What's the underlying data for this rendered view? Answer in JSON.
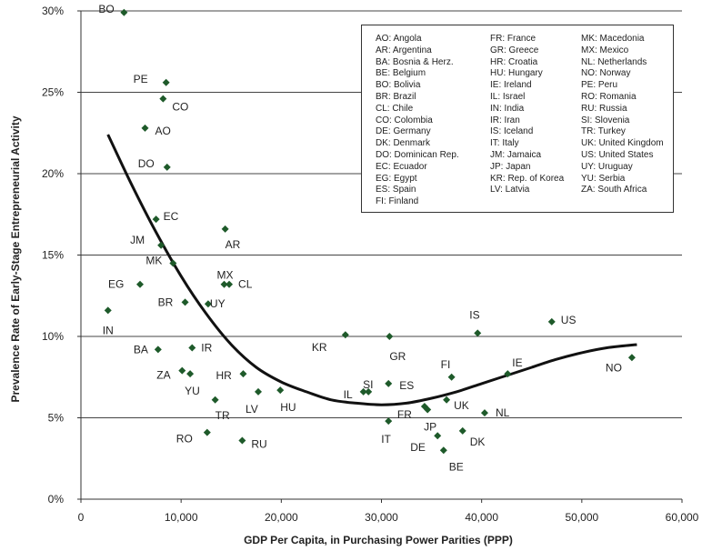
{
  "chart_data": {
    "type": "scatter",
    "title": "",
    "xlabel": "GDP Per Capita, in Purchasing Power Parities (PPP)",
    "ylabel": "Prevalence Rate of Early-Stage Entrepreneurial Activity",
    "xlim": [
      0,
      60000
    ],
    "ylim": [
      0,
      30
    ],
    "x_ticks": [
      "0",
      "10,000",
      "20,000",
      "30,000",
      "40,000",
      "50,000",
      "60,000"
    ],
    "y_ticks": [
      "0%",
      "5%",
      "10%",
      "15%",
      "20%",
      "25%",
      "30%"
    ],
    "grid": "horizontal",
    "marker_color": "#1e5a2a",
    "curve_color": "#111111",
    "points": [
      {
        "label": "BO",
        "x": 4300,
        "y": 29.9
      },
      {
        "label": "PE",
        "x": 8500,
        "y": 25.6
      },
      {
        "label": "CO",
        "x": 8200,
        "y": 24.6
      },
      {
        "label": "AO",
        "x": 6400,
        "y": 22.8
      },
      {
        "label": "DO",
        "x": 8600,
        "y": 20.4
      },
      {
        "label": "EC",
        "x": 7500,
        "y": 17.2
      },
      {
        "label": "AR",
        "x": 14400,
        "y": 16.6
      },
      {
        "label": "JM",
        "x": 8000,
        "y": 15.6
      },
      {
        "label": "MK",
        "x": 9200,
        "y": 14.5
      },
      {
        "label": "MX",
        "x": 14300,
        "y": 13.2
      },
      {
        "label": "CL",
        "x": 14800,
        "y": 13.2
      },
      {
        "label": "EG",
        "x": 5900,
        "y": 13.2
      },
      {
        "label": "BR",
        "x": 10400,
        "y": 12.1
      },
      {
        "label": "UY",
        "x": 12700,
        "y": 12.0
      },
      {
        "label": "IN",
        "x": 2700,
        "y": 11.6
      },
      {
        "label": "KR",
        "x": 26400,
        "y": 10.1
      },
      {
        "label": "GR",
        "x": 30800,
        "y": 10.0
      },
      {
        "label": "IS",
        "x": 39600,
        "y": 10.2
      },
      {
        "label": "US",
        "x": 47000,
        "y": 10.9
      },
      {
        "label": "BA",
        "x": 7700,
        "y": 9.2
      },
      {
        "label": "IR",
        "x": 11100,
        "y": 9.3
      },
      {
        "label": "ZA",
        "x": 10100,
        "y": 7.9
      },
      {
        "label": "YU",
        "x": 10900,
        "y": 7.7
      },
      {
        "label": "HR",
        "x": 16200,
        "y": 7.7
      },
      {
        "label": "FI",
        "x": 37000,
        "y": 7.5
      },
      {
        "label": "IE",
        "x": 42600,
        "y": 7.7
      },
      {
        "label": "NO",
        "x": 55000,
        "y": 8.7
      },
      {
        "label": "SI",
        "x": 28700,
        "y": 6.6
      },
      {
        "label": "IL",
        "x": 28200,
        "y": 6.6
      },
      {
        "label": "ES",
        "x": 30700,
        "y": 7.1
      },
      {
        "label": "LV",
        "x": 17700,
        "y": 6.6
      },
      {
        "label": "HU",
        "x": 19900,
        "y": 6.7
      },
      {
        "label": "TR",
        "x": 13400,
        "y": 6.1
      },
      {
        "label": "UK",
        "x": 36500,
        "y": 6.1
      },
      {
        "label": "FR",
        "x": 34300,
        "y": 5.7
      },
      {
        "label": "JP",
        "x": 34600,
        "y": 5.5
      },
      {
        "label": "NL",
        "x": 40300,
        "y": 5.3
      },
      {
        "label": "IT",
        "x": 30700,
        "y": 4.8
      },
      {
        "label": "RO",
        "x": 12600,
        "y": 4.1
      },
      {
        "label": "DK",
        "x": 38100,
        "y": 4.2
      },
      {
        "label": "DE",
        "x": 35600,
        "y": 3.9
      },
      {
        "label": "RU",
        "x": 16100,
        "y": 3.6
      },
      {
        "label": "BE",
        "x": 36200,
        "y": 3.0
      }
    ],
    "trend_curve": [
      [
        2700,
        22.4
      ],
      [
        5000,
        19.4
      ],
      [
        7500,
        16.4
      ],
      [
        10000,
        13.7
      ],
      [
        12500,
        11.4
      ],
      [
        15000,
        9.5
      ],
      [
        17500,
        8.1
      ],
      [
        20000,
        7.2
      ],
      [
        22500,
        6.6
      ],
      [
        25000,
        6.1
      ],
      [
        27500,
        5.9
      ],
      [
        30000,
        5.8
      ],
      [
        32500,
        5.9
      ],
      [
        35000,
        6.2
      ],
      [
        37500,
        6.6
      ],
      [
        40000,
        7.1
      ],
      [
        42500,
        7.6
      ],
      [
        45000,
        8.1
      ],
      [
        47500,
        8.6
      ],
      [
        50000,
        9.0
      ],
      [
        52500,
        9.3
      ],
      [
        55500,
        9.5
      ]
    ],
    "legend": [
      [
        "AO: Angola",
        "AR: Argentina",
        "BA: Bosnia & Herz.",
        "BE: Belgium",
        "BO: Bolivia",
        "BR: Brazil",
        "CL: Chile",
        "CO: Colombia",
        "DE: Germany",
        "DK: Denmark",
        "DO: Dominican Rep.",
        "EC: Ecuador",
        "EG: Egypt",
        "ES: Spain",
        "FI: Finland"
      ],
      [
        "FR: France",
        "GR: Greece",
        "HR: Croatia",
        "HU: Hungary",
        "IE: Ireland",
        "IL: Israel",
        "IN: India",
        "IR: Iran",
        "IS: Iceland",
        "IT: Italy",
        "JM: Jamaica",
        "JP: Japan",
        "KR: Rep. of Korea",
        "LV: Latvia"
      ],
      [
        "MK: Macedonia",
        "MX: Mexico",
        "NL: Netherlands",
        "NO: Norway",
        "PE: Peru",
        "RO: Romania",
        "RU: Russia",
        "SI: Slovenia",
        "TR: Turkey",
        "UK: United Kingdom",
        "US: United States",
        "UY: Uruguay",
        "YU: Serbia",
        "ZA: South Africa"
      ]
    ]
  }
}
